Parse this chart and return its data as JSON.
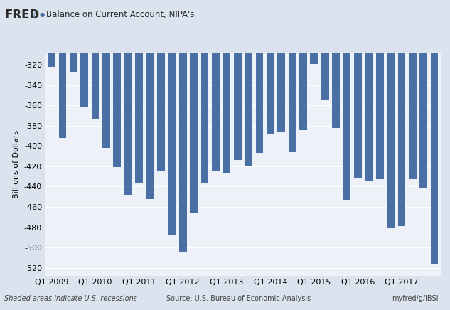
{
  "title": "Balance on Current Account, NIPA's",
  "ylabel": "Billions of Dollars",
  "source_text": "Source: U.S. Bureau of Economic Analysis",
  "footer_left": "Shaded areas indicate U.S. recessions",
  "footer_right": "myfred/g/lBSI",
  "background_color": "#dae3ee",
  "plot_bg_color": "#eef2f8",
  "bar_color": "#4a6fa5",
  "ylim_bottom": -528,
  "ylim_top": -308,
  "yticks": [
    -320,
    -340,
    -360,
    -380,
    -400,
    -420,
    -440,
    -460,
    -480,
    -500,
    -520
  ],
  "values": [
    -322,
    -392,
    -327,
    -362,
    -373,
    -402,
    -421,
    -448,
    -436,
    -452,
    -425,
    -488,
    -504,
    -466,
    -436,
    -424,
    -427,
    -414,
    -420,
    -407,
    -388,
    -386,
    -406,
    -384,
    -319,
    -355,
    -382,
    -453,
    -432,
    -435,
    -433,
    -480,
    -479,
    -433,
    -441,
    -517
  ],
  "xtick_positions": [
    0,
    4,
    8,
    12,
    16,
    20,
    24,
    28,
    32
  ],
  "xtick_labels": [
    "Q1 2009",
    "Q1 2010",
    "Q1 2011",
    "Q1 2012",
    "Q1 2013",
    "Q1 2014",
    "Q1 2015",
    "Q1 2016",
    "Q1 2017"
  ]
}
